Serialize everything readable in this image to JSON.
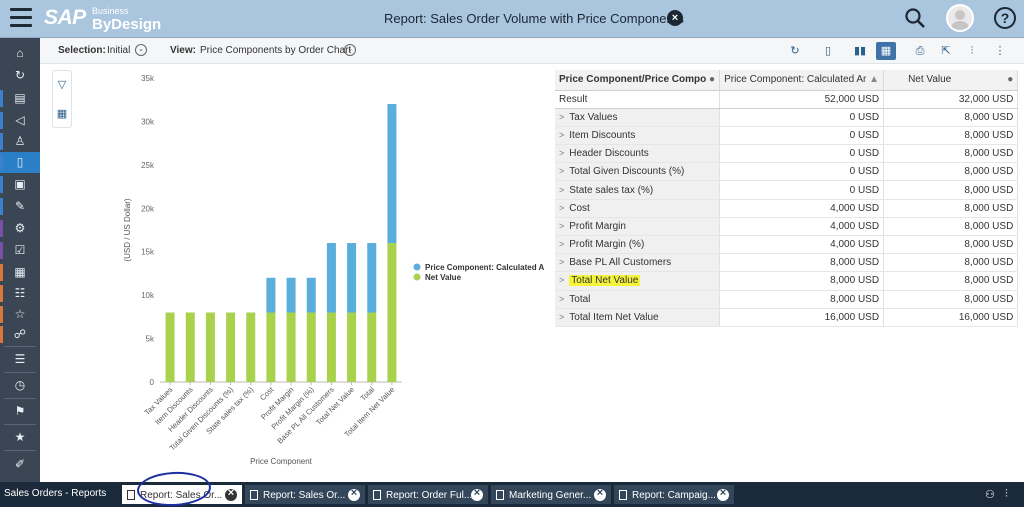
{
  "header": {
    "logo_main": "SAP",
    "logo_line1": "Business",
    "logo_line2": "ByDesign",
    "title": "Report: Sales Order Volume with Price Components"
  },
  "subbar": {
    "selection_label": "Selection:",
    "selection_value": "Initial",
    "view_label": "View:",
    "view_value": "Price Components by Order Chart"
  },
  "colors": {
    "series_blue": "#5aaedc",
    "series_green": "#a8d24b",
    "accent": "#2a7fc6",
    "highlight": "#f4f43a"
  },
  "chart_data": {
    "type": "bar",
    "stacked": true,
    "categories": [
      "Tax Values",
      "Item Discounts",
      "Header Discounts",
      "Total Given Discounts (%)",
      "State sales tax (%)",
      "Cost",
      "Profit Margin",
      "Profit Margin (%)",
      "Base PL All Customers",
      "Total Net Value",
      "Total",
      "Total Item Net Value"
    ],
    "series": [
      {
        "name": "Net Value",
        "color": "#a8d24b",
        "values": [
          8000,
          8000,
          8000,
          8000,
          8000,
          8000,
          8000,
          8000,
          8000,
          8000,
          8000,
          16000
        ]
      },
      {
        "name": "Price Component: Calculated Amount",
        "color": "#5aaedc",
        "values": [
          0,
          0,
          0,
          0,
          0,
          4000,
          4000,
          4000,
          8000,
          8000,
          8000,
          16000
        ]
      }
    ],
    "legend": [
      "Price Component: Calculated Amount",
      "Net Value"
    ],
    "ylim": [
      0,
      35000
    ],
    "yticks": [
      0,
      5000,
      10000,
      15000,
      20000,
      25000,
      30000,
      35000
    ],
    "ytick_labels": [
      "0",
      "5k",
      "10k",
      "15k",
      "20k",
      "25k",
      "30k",
      "35k"
    ],
    "xlabel": "Price Component",
    "ylabel": "(USD / US Dollar)",
    "legend_position": "right"
  },
  "table": {
    "headers": [
      "Price Component/Price Compo",
      "Price Component: Calculated Ar",
      "Net Value"
    ],
    "result": {
      "label": "Result",
      "calc": "52,000 USD",
      "net": "32,000 USD"
    },
    "rows": [
      {
        "label": "Tax Values",
        "calc": "0 USD",
        "net": "8,000 USD"
      },
      {
        "label": "Item Discounts",
        "calc": "0 USD",
        "net": "8,000 USD"
      },
      {
        "label": "Header Discounts",
        "calc": "0 USD",
        "net": "8,000 USD"
      },
      {
        "label": "Total Given Discounts (%)",
        "calc": "0 USD",
        "net": "8,000 USD"
      },
      {
        "label": "State sales tax (%)",
        "calc": "0 USD",
        "net": "8,000 USD"
      },
      {
        "label": "Cost",
        "calc": "4,000 USD",
        "net": "8,000 USD"
      },
      {
        "label": "Profit Margin",
        "calc": "4,000 USD",
        "net": "8,000 USD"
      },
      {
        "label": "Profit Margin (%)",
        "calc": "4,000 USD",
        "net": "8,000 USD"
      },
      {
        "label": "Base PL All Customers",
        "calc": "8,000 USD",
        "net": "8,000 USD"
      },
      {
        "label": "Total Net Value",
        "calc": "8,000 USD",
        "net": "8,000 USD",
        "highlight": true
      },
      {
        "label": "Total",
        "calc": "8,000 USD",
        "net": "8,000 USD"
      },
      {
        "label": "Total Item Net Value",
        "calc": "16,000 USD",
        "net": "16,000 USD"
      }
    ]
  },
  "tabbar": {
    "context": "Sales Orders - Reports",
    "tabs": [
      {
        "label": "Report: Sales Or...",
        "active": true
      },
      {
        "label": "Report: Sales Or...",
        "active": false
      },
      {
        "label": "Report: Order Ful...",
        "active": false
      },
      {
        "label": "Marketing Gener...",
        "active": false
      },
      {
        "label": "Report: Campaig...",
        "active": false
      }
    ]
  },
  "sidebar_icons": [
    "home-icon",
    "refresh-icon",
    "contact-card-icon",
    "megaphone-icon",
    "person-edit-icon",
    "document-icon",
    "document-person-icon",
    "edit-document-icon",
    "approval-icon",
    "checklist-icon",
    "calendar-icon",
    "people-group-icon",
    "person-star-icon",
    "org-chart-icon",
    "list-icon",
    "clock-icon",
    "flag-icon",
    "favorite-list-icon",
    "edit-pad-icon"
  ]
}
